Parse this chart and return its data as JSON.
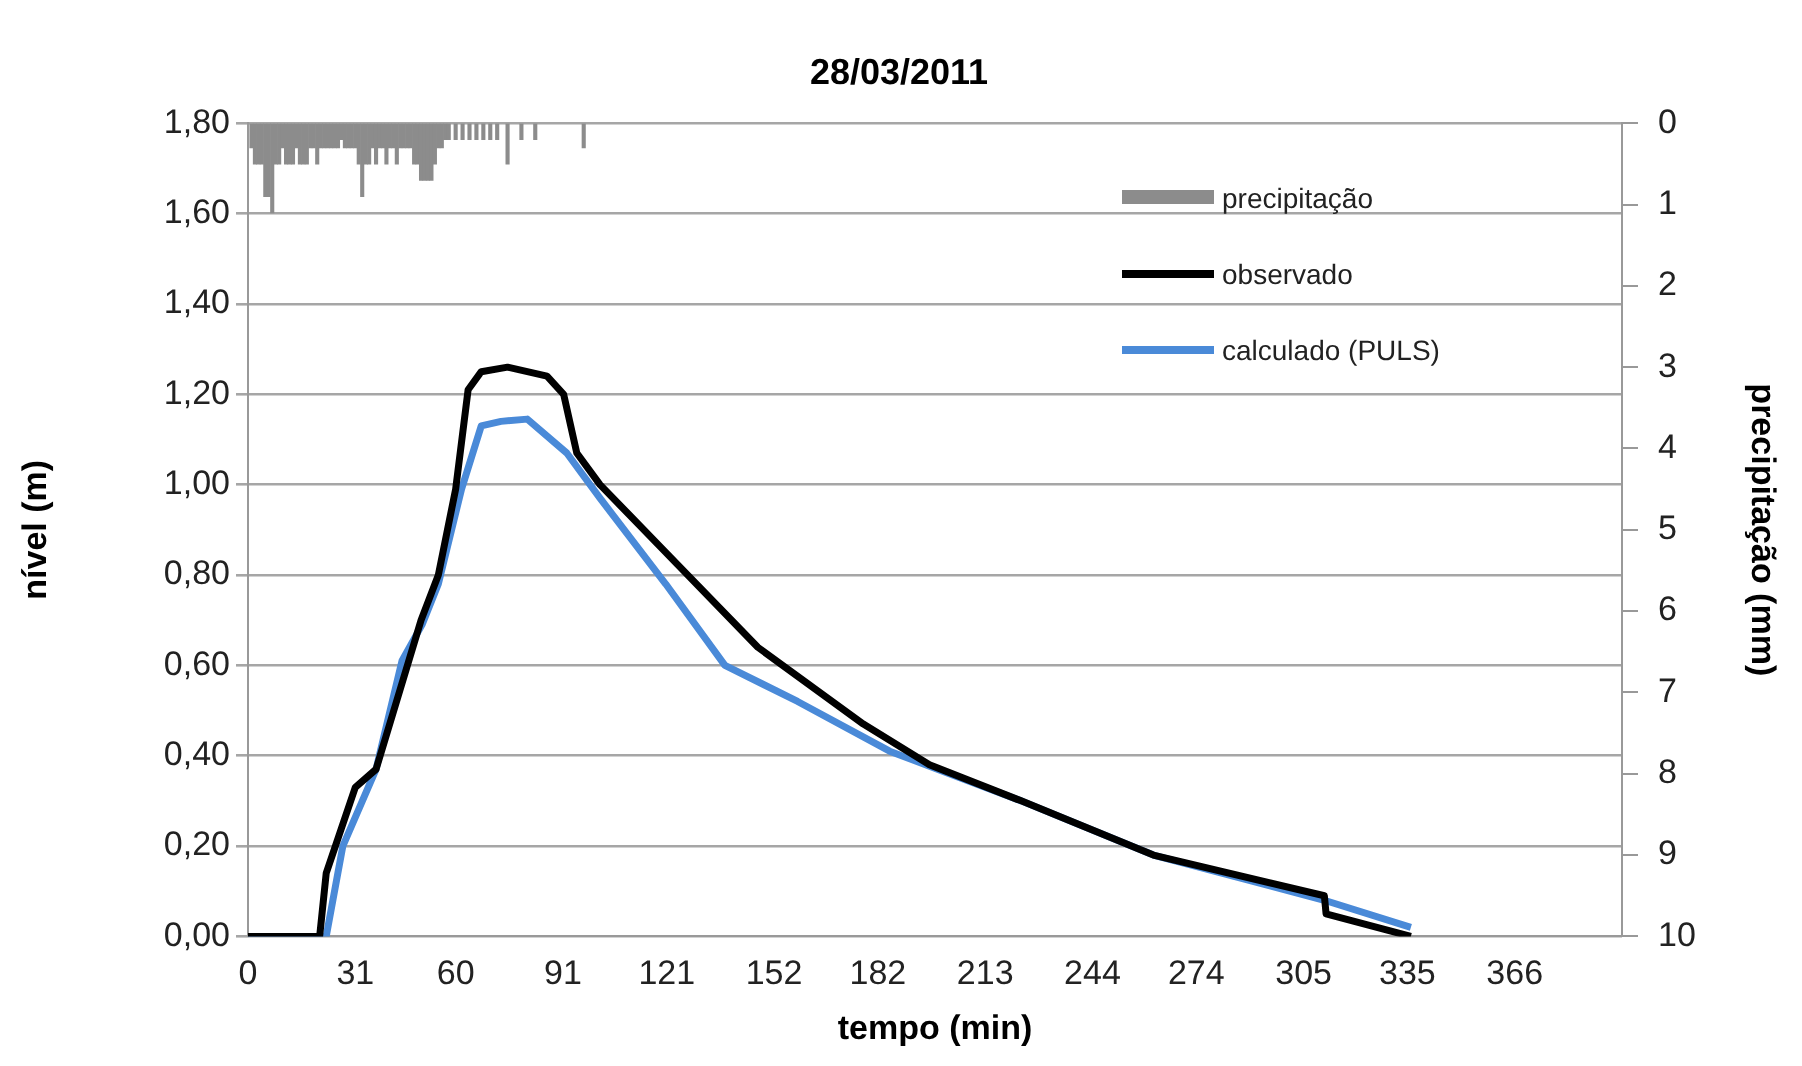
{
  "chart_data": {
    "type": "line",
    "title": "28/03/2011",
    "xlabel": "tempo (min)",
    "ylabel": "nível (m)",
    "y2label": "precipitação (mm)",
    "xlim": [
      0,
      397
    ],
    "xticks": [
      0,
      31,
      60,
      91,
      121,
      152,
      182,
      213,
      244,
      274,
      305,
      335,
      366
    ],
    "ylim": [
      0,
      1.8
    ],
    "yticks": [
      {
        "value": 0,
        "label": "0,00"
      },
      {
        "value": 0.2,
        "label": "0,20"
      },
      {
        "value": 0.4,
        "label": "0,40"
      },
      {
        "value": 0.6,
        "label": "0,60"
      },
      {
        "value": 0.8,
        "label": "0,80"
      },
      {
        "value": 1,
        "label": "1,00"
      },
      {
        "value": 1.2,
        "label": "1,20"
      },
      {
        "value": 1.4,
        "label": "1,40"
      },
      {
        "value": 1.6,
        "label": "1,60"
      },
      {
        "value": 1.8,
        "label": "1,80"
      }
    ],
    "y2lim": [
      10,
      0
    ],
    "y2ticks": [
      0,
      1,
      2,
      3,
      4,
      5,
      6,
      7,
      8,
      9,
      10
    ],
    "grid": "y",
    "legend": "top right",
    "marker": "none",
    "series": [
      {
        "name": "precipitação",
        "type": "bar",
        "axis": "y2",
        "color": "#8c8c8c",
        "x": [
          1,
          2,
          3,
          4,
          5,
          6,
          7,
          8,
          9,
          10,
          11,
          12,
          13,
          14,
          15,
          16,
          17,
          18,
          19,
          20,
          21,
          22,
          23,
          24,
          25,
          26,
          27,
          28,
          29,
          30,
          31,
          32,
          33,
          34,
          35,
          36,
          37,
          38,
          39,
          40,
          41,
          42,
          43,
          44,
          45,
          46,
          47,
          48,
          49,
          50,
          51,
          52,
          53,
          54,
          55,
          56,
          57,
          58,
          60,
          62,
          64,
          66,
          68,
          70,
          72,
          75,
          79,
          83,
          97
        ],
        "values": [
          0.3,
          0.5,
          0.5,
          0.5,
          0.9,
          0.9,
          1.1,
          0.5,
          0.5,
          0.3,
          0.5,
          0.5,
          0.5,
          0.3,
          0.5,
          0.5,
          0.5,
          0.3,
          0.3,
          0.5,
          0.3,
          0.3,
          0.3,
          0.3,
          0.3,
          0.3,
          0.2,
          0.3,
          0.3,
          0.3,
          0.3,
          0.5,
          0.9,
          0.5,
          0.5,
          0.3,
          0.5,
          0.3,
          0.3,
          0.5,
          0.3,
          0.3,
          0.5,
          0.3,
          0.3,
          0.3,
          0.3,
          0.5,
          0.5,
          0.7,
          0.7,
          0.7,
          0.7,
          0.5,
          0.3,
          0.3,
          0.2,
          0.2,
          0.2,
          0.2,
          0.2,
          0.2,
          0.2,
          0.2,
          0.2,
          0.5,
          0.2,
          0.2,
          0.3
        ]
      },
      {
        "name": "observado",
        "color": "#000000",
        "x": [
          0,
          20.7,
          22.6,
          31,
          37,
          50,
          55,
          60,
          63.6,
          67.4,
          75,
          86.4,
          91.2,
          95,
          101.7,
          120.7,
          147.3,
          177.8,
          196.9,
          223.4,
          261.6,
          311,
          311.5,
          336
        ],
        "values": [
          0,
          0,
          0.14,
          0.33,
          0.37,
          0.7,
          0.8,
          0.99,
          1.21,
          1.25,
          1.26,
          1.24,
          1.2,
          1.07,
          1,
          0.85,
          0.64,
          0.47,
          0.38,
          0.3,
          0.18,
          0.09,
          0.05,
          0
        ]
      },
      {
        "name": "calculado (PULS)",
        "color": "#4a8ad8",
        "x": [
          0,
          22.6,
          27.4,
          37,
          44.5,
          50.3,
          55,
          61.7,
          67.4,
          73.1,
          80.7,
          92.1,
          101.7,
          120.7,
          137.8,
          158.8,
          185.4,
          223.4,
          261.6,
          311,
          336
        ],
        "values": [
          0,
          0,
          0.2,
          0.37,
          0.61,
          0.69,
          0.78,
          0.99,
          1.13,
          1.14,
          1.145,
          1.07,
          0.97,
          0.78,
          0.6,
          0.52,
          0.41,
          0.3,
          0.18,
          0.08,
          0.02
        ]
      }
    ]
  }
}
